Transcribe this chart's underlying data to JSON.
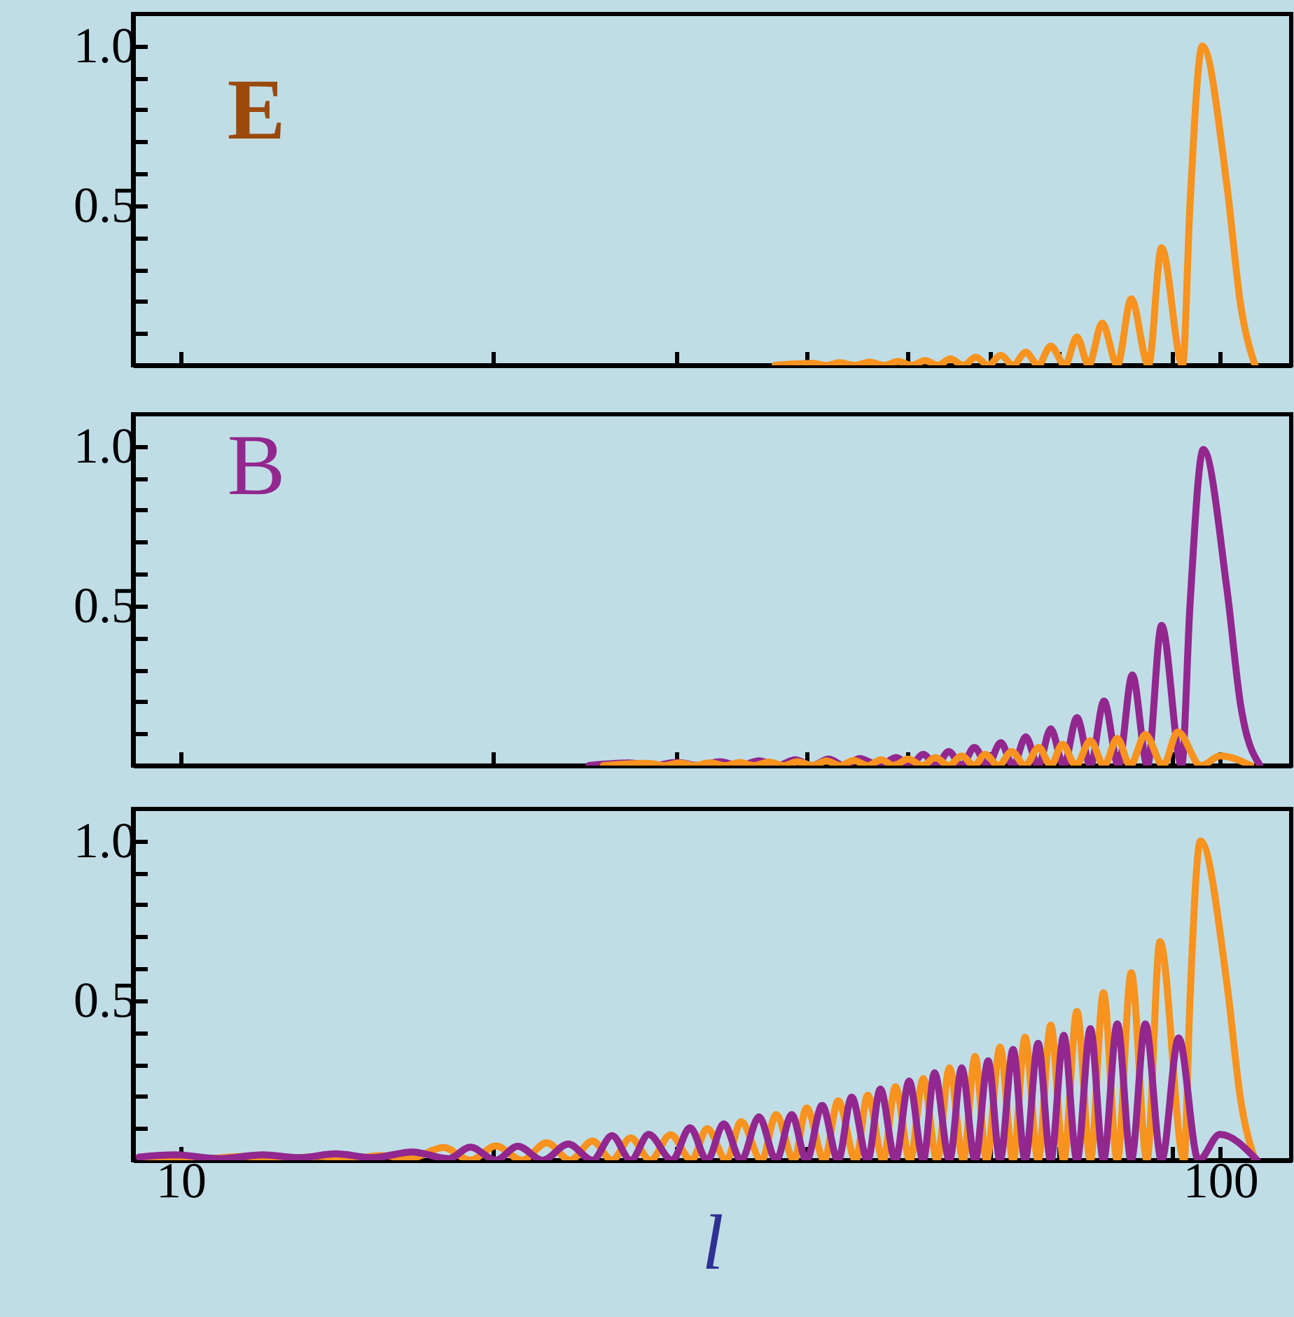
{
  "chart_data": [
    {
      "type": "line",
      "log": "x",
      "tick_labels": "y",
      "xlim": [
        9,
        117
      ],
      "ylim": [
        0,
        1.1
      ],
      "xticks": [
        {
          "value": 10,
          "label": null
        },
        {
          "value": 20,
          "label": null
        },
        {
          "value": 30,
          "label": null
        },
        {
          "value": 40,
          "label": null
        },
        {
          "value": 50,
          "label": null
        },
        {
          "value": 60,
          "label": null
        },
        {
          "value": 70,
          "label": null
        },
        {
          "value": 80,
          "label": null
        },
        {
          "value": 90,
          "label": null
        },
        {
          "value": 100,
          "label": null
        }
      ],
      "yticks": [
        {
          "value": 0.1,
          "label": null
        },
        {
          "value": 0.2,
          "label": null
        },
        {
          "value": 0.3,
          "label": null
        },
        {
          "value": 0.4,
          "label": null
        },
        {
          "value": 0.5,
          "label": "0.5"
        },
        {
          "value": 0.6,
          "label": null
        },
        {
          "value": 0.7,
          "label": null
        },
        {
          "value": 0.8,
          "label": null
        },
        {
          "value": 0.9,
          "label": null
        },
        {
          "value": 1,
          "label": "1.0"
        }
      ],
      "annotations": [
        "E"
      ],
      "series": [
        {
          "color": "#f7931e",
          "x": [
            37.3,
            40.5,
            41.8,
            43,
            44.5,
            46,
            47.5,
            49,
            50.5,
            52,
            53.5,
            55,
            56.6,
            58.2,
            59.8,
            61.5,
            63.2,
            65.0,
            66.8,
            68.7,
            70.9,
            72.8,
            74.7,
            77.0,
            79.6,
            82.1,
            85.3,
            87.8,
            92.0,
            93.5,
            96.1,
            101.5,
            104.6,
            108
          ],
          "values": [
            0,
            0.006,
            0,
            0.008,
            0,
            0.01,
            0,
            0.012,
            0,
            0.015,
            0,
            0.02,
            0,
            0.025,
            0,
            0.031,
            0,
            0.041,
            0,
            0.06,
            0,
            0.089,
            0,
            0.132,
            0,
            0.208,
            0,
            0.368,
            0,
            0.5,
            1.0,
            0.56,
            0.19,
            0
          ]
        }
      ]
    },
    {
      "type": "line",
      "log": "x",
      "tick_labels": "y",
      "xlim": [
        9,
        117
      ],
      "ylim": [
        0,
        1.1
      ],
      "xticks": [
        {
          "value": 10,
          "label": null
        },
        {
          "value": 20,
          "label": null
        },
        {
          "value": 30,
          "label": null
        },
        {
          "value": 40,
          "label": null
        },
        {
          "value": 50,
          "label": null
        },
        {
          "value": 60,
          "label": null
        },
        {
          "value": 70,
          "label": null
        },
        {
          "value": 80,
          "label": null
        },
        {
          "value": 90,
          "label": null
        },
        {
          "value": 100,
          "label": null
        }
      ],
      "yticks": [
        {
          "value": 0.1,
          "label": null
        },
        {
          "value": 0.2,
          "label": null
        },
        {
          "value": 0.3,
          "label": null
        },
        {
          "value": 0.4,
          "label": null
        },
        {
          "value": 0.5,
          "label": "0.5"
        },
        {
          "value": 0.6,
          "label": null
        },
        {
          "value": 0.7,
          "label": null
        },
        {
          "value": 0.8,
          "label": null
        },
        {
          "value": 0.9,
          "label": null
        },
        {
          "value": 1,
          "label": "1.0"
        }
      ],
      "annotations": [
        "B"
      ],
      "series": [
        {
          "color": "#92278f",
          "x": [
            24.7,
            27,
            28.5,
            30,
            31.5,
            33,
            34.5,
            36,
            37.5,
            39,
            40.5,
            42,
            43.5,
            45,
            47,
            48.8,
            50.3,
            51.8,
            53.3,
            54.8,
            56.4,
            58.0,
            59.7,
            61.5,
            63.2,
            65.0,
            66.8,
            68.7,
            70.7,
            72.8,
            75.0,
            77.3,
            79.8,
            82.3,
            85.1,
            87.8,
            91.8,
            93.5,
            96.3,
            101.5,
            104.6,
            109.2
          ],
          "values": [
            0,
            0.008,
            0,
            0.01,
            0,
            0.012,
            0,
            0.015,
            0,
            0.018,
            0,
            0.02,
            0,
            0.022,
            0,
            0.025,
            0,
            0.035,
            0,
            0.044,
            0,
            0.057,
            0,
            0.072,
            0,
            0.09,
            0,
            0.115,
            0,
            0.15,
            0,
            0.202,
            0,
            0.284,
            0,
            0.439,
            0,
            0.5,
            0.99,
            0.55,
            0.19,
            0
          ]
        },
        {
          "color": "#f7931e",
          "x": [
            25.5,
            28.2,
            29.2,
            30.2,
            31.2,
            32.3,
            33.4,
            34.5,
            35.6,
            36.8,
            38.0,
            39.2,
            40.5,
            41.8,
            43.1,
            44.4,
            45.8,
            47.2,
            48.5,
            50.1,
            51.7,
            53.2,
            54.8,
            56.4,
            58.0,
            59.4,
            61.2,
            63.0,
            64.9,
            66.9,
            68.7,
            70.5,
            72.6,
            75.0,
            77.3,
            79.6,
            81.9,
            84.7,
            88.1,
            91.0,
            95.8,
            100,
            107
          ],
          "values": [
            0,
            0.007,
            0,
            0.008,
            0,
            0.009,
            0,
            0.01,
            0,
            0.011,
            0,
            0.012,
            0,
            0.014,
            0,
            0.016,
            0,
            0.018,
            0,
            0.02,
            0,
            0.025,
            0,
            0.03,
            0,
            0.035,
            0,
            0.044,
            0,
            0.057,
            0,
            0.067,
            0,
            0.078,
            0,
            0.085,
            0,
            0.097,
            0,
            0.105,
            0,
            0.03,
            0
          ]
        }
      ]
    },
    {
      "type": "line",
      "log": "x",
      "xlabel": "l",
      "xlim": [
        9,
        117
      ],
      "ylim": [
        0,
        1.1
      ],
      "xticks": [
        10,
        {
          "value": 20,
          "label": null
        },
        {
          "value": 30,
          "label": null
        },
        {
          "value": 40,
          "label": null
        },
        {
          "value": 50,
          "label": null
        },
        {
          "value": 60,
          "label": null
        },
        {
          "value": 70,
          "label": null
        },
        {
          "value": 80,
          "label": null
        },
        {
          "value": 90,
          "label": null
        },
        100
      ],
      "yticks": [
        {
          "value": 0.1,
          "label": null
        },
        {
          "value": 0.2,
          "label": null
        },
        {
          "value": 0.3,
          "label": null
        },
        {
          "value": 0.4,
          "label": null
        },
        {
          "value": 0.5,
          "label": "0.5"
        },
        {
          "value": 0.6,
          "label": null
        },
        {
          "value": 0.7,
          "label": null
        },
        {
          "value": 0.8,
          "label": null
        },
        {
          "value": 0.9,
          "label": null
        },
        {
          "value": 1,
          "label": "1.0"
        }
      ],
      "series": [
        {
          "color": "#f7931e",
          "x": [
            9.2,
            10.5,
            11.5,
            12.6,
            13.6,
            14.6,
            15.6,
            16.6,
            17.9,
            19.0,
            20.1,
            21.3,
            22.5,
            23.7,
            24.9,
            26.0,
            27.1,
            28.3,
            29.6,
            31.0,
            32.1,
            33.5,
            34.6,
            36.2,
            37.4,
            38.9,
            40.0,
            41.6,
            42.9,
            44.6,
            45.8,
            47.4,
            48.7,
            50.3,
            51.8,
            53.4,
            54.9,
            56.6,
            58.1,
            59.6,
            61.4,
            63.2,
            64.9,
            66.8,
            68.7,
            70.7,
            72.8,
            75.0,
            77.2,
            79.6,
            82.1,
            85.0,
            87.5,
            92.3,
            93.5,
            95.7,
            101.5,
            104.6,
            108
          ],
          "values": [
            0.01,
            0.005,
            0.012,
            0.005,
            0.012,
            0.005,
            0.015,
            0.005,
            0.04,
            0,
            0.045,
            0,
            0.055,
            0,
            0.06,
            0,
            0.07,
            0,
            0.08,
            0,
            0.099,
            0,
            0.121,
            0,
            0.143,
            0,
            0.164,
            0,
            0.186,
            0,
            0.204,
            0,
            0.23,
            0,
            0.256,
            0,
            0.289,
            0,
            0.325,
            0,
            0.354,
            0,
            0.385,
            0,
            0.423,
            0,
            0.466,
            0,
            0.525,
            0,
            0.587,
            0,
            0.685,
            0,
            0.5,
            1.0,
            0.55,
            0.19,
            0
          ]
        },
        {
          "color": "#92278f",
          "x": [
            9.12,
            9.86,
            10.9,
            12.0,
            13.0,
            14.1,
            15.3,
            16.7,
            18.1,
            19.0,
            20.1,
            21.1,
            22.3,
            23.6,
            24.9,
            26.0,
            27.1,
            28.2,
            29.7,
            30.9,
            32.1,
            33.3,
            34.6,
            36.0,
            37.4,
            38.7,
            40.0,
            41.4,
            42.9,
            44.2,
            45.8,
            47.1,
            48.7,
            50.2,
            51.8,
            53.1,
            54.9,
            56.4,
            58.1,
            59.8,
            61.4,
            63.2,
            64.9,
            66.8,
            68.7,
            70.7,
            72.8,
            75.0,
            77.2,
            79.6,
            82.1,
            84.7,
            87.8,
            91.2,
            95.3,
            99.9,
            108.5
          ],
          "values": [
            0.01,
            0.017,
            0.005,
            0.017,
            0.008,
            0.02,
            0.008,
            0.026,
            0.005,
            0.041,
            0,
            0.044,
            0,
            0.051,
            0,
            0.077,
            0,
            0.081,
            0,
            0.102,
            0,
            0.114,
            0,
            0.136,
            0,
            0.143,
            0,
            0.172,
            0,
            0.198,
            0,
            0.223,
            0,
            0.248,
            0,
            0.274,
            0,
            0.289,
            0,
            0.311,
            0,
            0.347,
            0,
            0.366,
            0,
            0.391,
            0,
            0.412,
            0,
            0.427,
            0,
            0.427,
            0,
            0.383,
            0,
            0.081,
            0
          ]
        }
      ]
    }
  ]
}
